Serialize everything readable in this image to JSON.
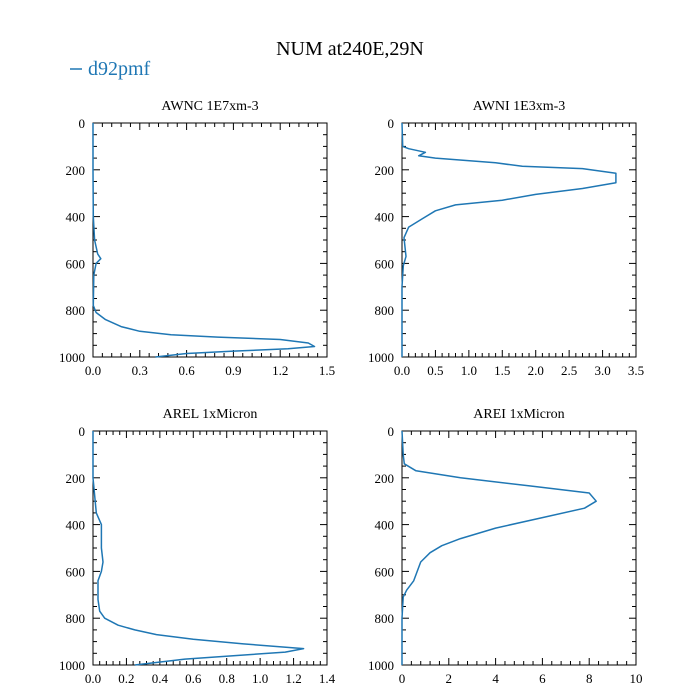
{
  "title": "NUM at240E,29N",
  "legend": {
    "label": "d92pmf",
    "color": "#1f77b4",
    "placement": "top-left"
  },
  "chart_data": [
    {
      "type": "line",
      "title": "AWNC  1E7xm-3",
      "ylim": [
        1000,
        0
      ],
      "yticks": [
        0,
        200,
        400,
        600,
        800,
        1000
      ],
      "xlim": [
        0,
        1.5
      ],
      "xticks": [
        0.0,
        0.3,
        0.6,
        0.9,
        1.2,
        1.5
      ],
      "xtick_labels": [
        "0.0",
        "0.3",
        "0.6",
        "0.9",
        "1.2",
        "1.5"
      ],
      "series": [
        {
          "name": "d92pmf",
          "x": [
            0,
            0,
            0.002,
            0.01,
            0.03,
            0.05,
            0.02,
            0.005,
            0.002,
            0.02,
            0.08,
            0.18,
            0.3,
            0.5,
            0.8,
            1.2,
            1.38,
            1.42,
            1.25,
            0.9,
            0.6,
            0.4
          ],
          "y": [
            0,
            200,
            400,
            500,
            560,
            580,
            600,
            650,
            780,
            810,
            840,
            870,
            890,
            905,
            915,
            925,
            940,
            955,
            965,
            975,
            985,
            1000
          ]
        }
      ]
    },
    {
      "type": "line",
      "title": "AWNI  1E3xm-3",
      "ylim": [
        1000,
        0
      ],
      "yticks": [
        0,
        200,
        400,
        600,
        800,
        1000
      ],
      "xlim": [
        0,
        3.5
      ],
      "xticks": [
        0.0,
        0.5,
        1.0,
        1.5,
        2.0,
        2.5,
        3.0,
        3.5
      ],
      "xtick_labels": [
        "0.0",
        "0.5",
        "1.0",
        "1.5",
        "2.0",
        "2.5",
        "3.0",
        "3.5"
      ],
      "series": [
        {
          "name": "d92pmf",
          "x": [
            0,
            0.01,
            0.1,
            0.35,
            0.25,
            0.5,
            1.4,
            1.8,
            2.7,
            3.2,
            3.2,
            2.7,
            2.0,
            1.5,
            0.8,
            0.5,
            0.3,
            0.1,
            0.03,
            0.06,
            0.02,
            0,
            0
          ],
          "y": [
            0,
            100,
            110,
            125,
            140,
            150,
            170,
            185,
            195,
            215,
            255,
            280,
            305,
            330,
            350,
            375,
            410,
            445,
            490,
            570,
            610,
            700,
            1000
          ]
        }
      ]
    },
    {
      "type": "line",
      "title": "AREL  1xMicron",
      "ylim": [
        1000,
        0
      ],
      "yticks": [
        0,
        200,
        400,
        600,
        800,
        1000
      ],
      "xlim": [
        0,
        1.4
      ],
      "xticks": [
        0.0,
        0.2,
        0.4,
        0.6,
        0.8,
        1.0,
        1.2,
        1.4
      ],
      "xtick_labels": [
        "0.0",
        "0.2",
        "0.4",
        "0.6",
        "0.8",
        "1.0",
        "1.2",
        "1.4"
      ],
      "series": [
        {
          "name": "d92pmf",
          "x": [
            0,
            0,
            0.02,
            0.05,
            0.05,
            0.06,
            0.05,
            0.03,
            0.03,
            0.04,
            0.07,
            0.15,
            0.25,
            0.38,
            0.6,
            0.9,
            1.26,
            1.15,
            0.85,
            0.55,
            0.25
          ],
          "y": [
            0,
            200,
            350,
            400,
            500,
            560,
            600,
            640,
            720,
            770,
            800,
            830,
            850,
            870,
            890,
            910,
            930,
            945,
            960,
            975,
            1000
          ]
        }
      ]
    },
    {
      "type": "line",
      "title": "AREI  1xMicron",
      "ylim": [
        1000,
        0
      ],
      "yticks": [
        0,
        200,
        400,
        600,
        800,
        1000
      ],
      "xlim": [
        0,
        10
      ],
      "xticks": [
        0,
        2,
        4,
        6,
        8,
        10
      ],
      "xtick_labels": [
        "0",
        "2",
        "4",
        "6",
        "8",
        "10"
      ],
      "series": [
        {
          "name": "d92pmf",
          "x": [
            0,
            0.05,
            0.1,
            0.6,
            2.5,
            5.5,
            8.0,
            8.3,
            7.8,
            6.0,
            4.0,
            2.5,
            1.7,
            1.2,
            0.8,
            0.5,
            0.2,
            0.05,
            0,
            0
          ],
          "y": [
            0,
            100,
            140,
            170,
            200,
            235,
            265,
            300,
            330,
            370,
            415,
            460,
            490,
            520,
            560,
            640,
            680,
            710,
            800,
            1000
          ]
        }
      ]
    }
  ]
}
